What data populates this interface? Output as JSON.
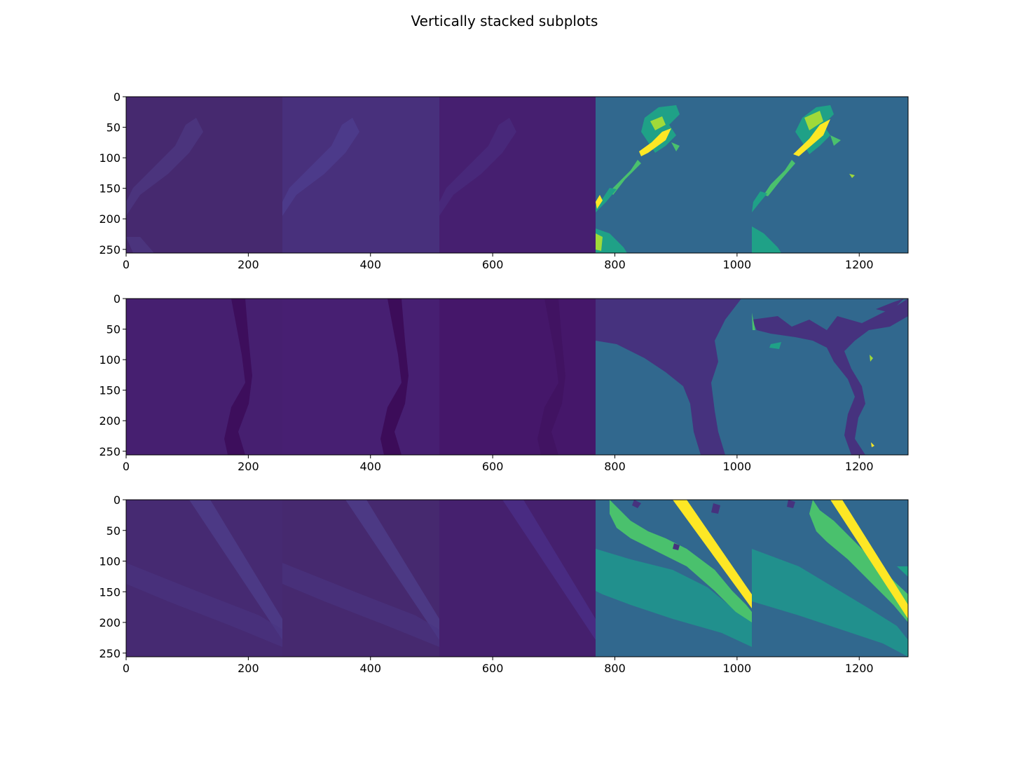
{
  "figure": {
    "suptitle": "Vertically stacked subplots"
  },
  "colors": {
    "viridis_0": "#440154",
    "viridis_1": "#46327e",
    "viridis_2": "#365c8d",
    "viridis_3": "#277f8e",
    "viridis_4": "#1fa187",
    "viridis_5": "#4ac16d",
    "viridis_6": "#a0da39",
    "viridis_7": "#fde725",
    "image_tile_1": "#46296f",
    "image_tile_2": "#48307c",
    "image_tile_3": "#461f70",
    "mask_background": "#31688e"
  },
  "chart_data": [
    {
      "type": "heatmap",
      "title": "",
      "xlabel": "",
      "ylabel": "",
      "xlim": [
        0,
        1280
      ],
      "ylim": [
        256,
        0
      ],
      "xticks": [
        0,
        200,
        400,
        600,
        800,
        1000,
        1200
      ],
      "yticks": [
        0,
        50,
        100,
        150,
        200,
        250
      ],
      "colormap": "viridis",
      "tiles": [
        {
          "x_range": [
            0,
            256
          ],
          "content": "aerial image band 1, forest with diagonal clearing"
        },
        {
          "x_range": [
            256,
            512
          ],
          "content": "aerial image band 2"
        },
        {
          "x_range": [
            512,
            768
          ],
          "content": "aerial image band 3"
        },
        {
          "x_range": [
            768,
            1024
          ],
          "content": "segmentation mask (ground truth)"
        },
        {
          "x_range": [
            1024,
            1280
          ],
          "content": "segmentation mask (prediction)"
        }
      ]
    },
    {
      "type": "heatmap",
      "title": "",
      "xlabel": "",
      "ylabel": "",
      "xlim": [
        0,
        1280
      ],
      "ylim": [
        256,
        0
      ],
      "xticks": [
        0,
        200,
        400,
        600,
        800,
        1000,
        1200
      ],
      "yticks": [
        0,
        50,
        100,
        150,
        200,
        250
      ],
      "colormap": "viridis",
      "tiles": [
        {
          "x_range": [
            0,
            256
          ],
          "content": "aerial image band 1, river channel"
        },
        {
          "x_range": [
            256,
            512
          ],
          "content": "aerial image band 2"
        },
        {
          "x_range": [
            512,
            768
          ],
          "content": "aerial image band 3"
        },
        {
          "x_range": [
            768,
            1024
          ],
          "content": "segmentation mask (ground truth)"
        },
        {
          "x_range": [
            1024,
            1280
          ],
          "content": "segmentation mask (prediction)"
        }
      ]
    },
    {
      "type": "heatmap",
      "title": "",
      "xlabel": "",
      "ylabel": "",
      "xlim": [
        0,
        1280
      ],
      "ylim": [
        256,
        0
      ],
      "xticks": [
        0,
        200,
        400,
        600,
        800,
        1000,
        1200
      ],
      "yticks": [
        0,
        50,
        100,
        150,
        200,
        250
      ],
      "colormap": "viridis",
      "tiles": [
        {
          "x_range": [
            0,
            256
          ],
          "content": "aerial image band 1, road crossing forest"
        },
        {
          "x_range": [
            256,
            512
          ],
          "content": "aerial image band 2"
        },
        {
          "x_range": [
            512,
            768
          ],
          "content": "aerial image band 3"
        },
        {
          "x_range": [
            768,
            1024
          ],
          "content": "segmentation mask (ground truth)"
        },
        {
          "x_range": [
            1024,
            1280
          ],
          "content": "segmentation mask (prediction)"
        }
      ]
    }
  ]
}
